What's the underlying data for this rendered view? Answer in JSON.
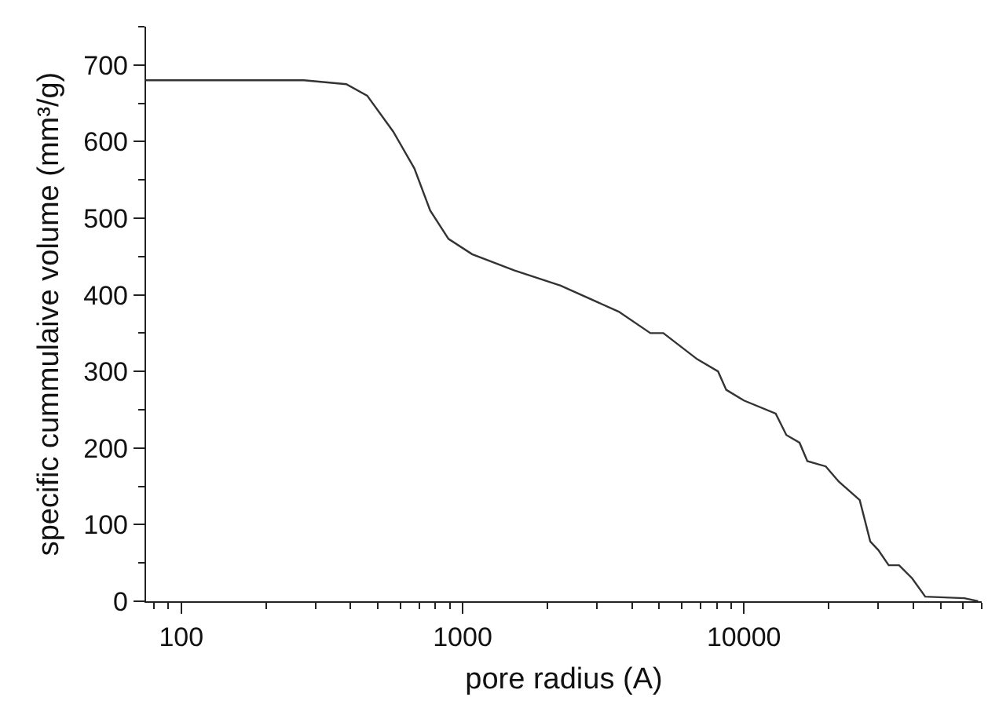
{
  "chart_data": {
    "type": "line",
    "xlabel": "pore radius (A)",
    "ylabel": "specific cummulaive volume (mm³/g)",
    "log": "x",
    "xlim": [
      75,
      70000
    ],
    "xticks": [
      100,
      1000,
      10000
    ],
    "ylim": [
      0,
      750
    ],
    "yticks": [
      0,
      100,
      200,
      300,
      400,
      500,
      600,
      700
    ],
    "grid": false,
    "legend": false,
    "marker": "none",
    "line_style": "solid",
    "series": [
      {
        "color": "#333333",
        "x": [
          75,
          150,
          273,
          386,
          458,
          567,
          674,
          767,
          891,
          1081,
          1524,
          2230,
          3590,
          4650,
          5170,
          6820,
          8090,
          8650,
          10000,
          12970,
          14150,
          15760,
          16800,
          19530,
          21750,
          25800,
          28120,
          30000,
          32700,
          35600,
          39600,
          44100,
          60800,
          68000
        ],
        "values": [
          680,
          680,
          680,
          675,
          660,
          613,
          565,
          510,
          473,
          453,
          432,
          412,
          378,
          350,
          350,
          316,
          300,
          276,
          262,
          245,
          217,
          207,
          183,
          176,
          156,
          132,
          78,
          67,
          47,
          47,
          30,
          6,
          4,
          0
        ]
      }
    ]
  }
}
